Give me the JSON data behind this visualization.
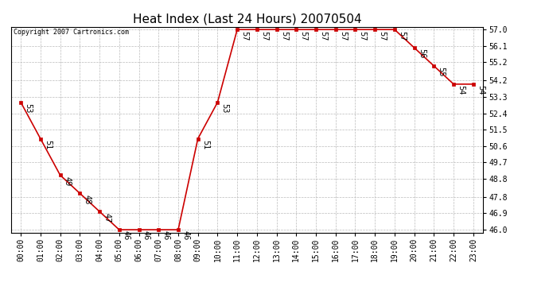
{
  "title": "Heat Index (Last 24 Hours) 20070504",
  "copyright": "Copyright 2007 Cartronics.com",
  "hours": [
    "00:00",
    "01:00",
    "02:00",
    "03:00",
    "04:00",
    "05:00",
    "06:00",
    "07:00",
    "08:00",
    "09:00",
    "10:00",
    "11:00",
    "12:00",
    "13:00",
    "14:00",
    "15:00",
    "16:00",
    "17:00",
    "18:00",
    "19:00",
    "20:00",
    "21:00",
    "22:00",
    "23:00"
  ],
  "values": [
    53,
    51,
    49,
    48,
    47,
    46,
    46,
    46,
    46,
    51,
    53,
    57,
    57,
    57,
    57,
    57,
    57,
    57,
    57,
    57,
    56,
    55,
    54,
    54
  ],
  "ylim_min": 46.0,
  "ylim_max": 57.0,
  "yticks": [
    46.0,
    46.9,
    47.8,
    48.8,
    49.7,
    50.6,
    51.5,
    52.4,
    53.3,
    54.2,
    55.2,
    56.1,
    57.0
  ],
  "line_color": "#cc0000",
  "marker_color": "#cc0000",
  "bg_color": "#ffffff",
  "plot_bg_color": "#ffffff",
  "grid_color": "#bbbbbb",
  "title_fontsize": 11,
  "tick_fontsize": 7,
  "label_fontsize": 7,
  "copyright_fontsize": 6
}
